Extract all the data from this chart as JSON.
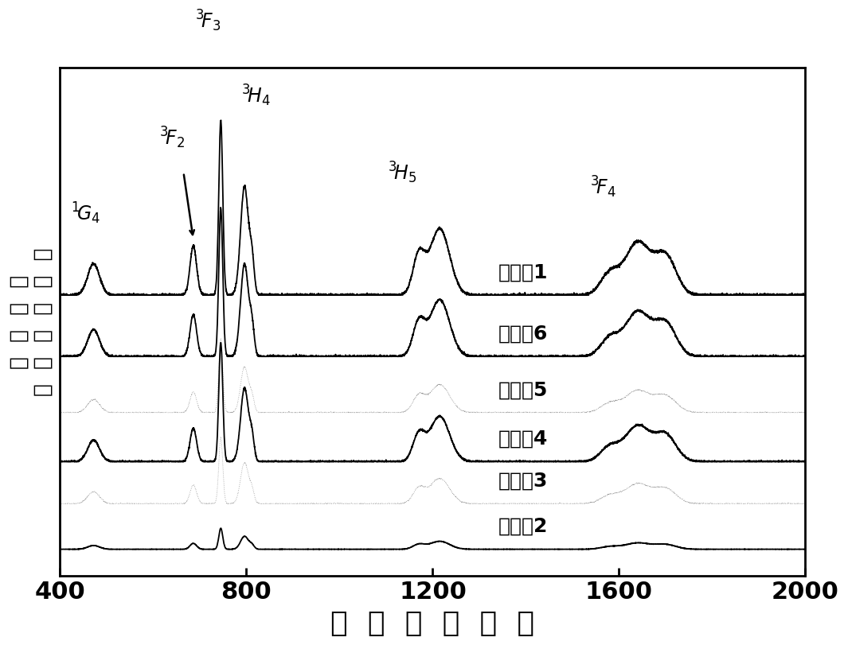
{
  "xlim": [
    400,
    2000
  ],
  "xlabel": "波  长  （  纳  米  ）",
  "ylabel_top": "（  任  意  单  位  ）",
  "ylabel_bot": "吸  收  强  度",
  "xlabel_fontsize": 26,
  "ylabel_fontsize": 19,
  "xticks": [
    400,
    800,
    1200,
    1600,
    2000
  ],
  "tick_fontsize": 22,
  "background_color": "#ffffff",
  "line_color_solid": "#000000",
  "series_labels": [
    "实施例1",
    "实施例6",
    "实施例5",
    "实施例4",
    "实施例3",
    "实施例2"
  ],
  "series_offsets": [
    1.55,
    1.2,
    0.88,
    0.6,
    0.36,
    0.1
  ],
  "series_scales": [
    1.0,
    0.85,
    0.42,
    0.68,
    0.38,
    0.12
  ],
  "series_dotted": [
    false,
    false,
    true,
    false,
    true,
    false
  ],
  "annotation_fontsize": 17,
  "label_fontsize": 18
}
